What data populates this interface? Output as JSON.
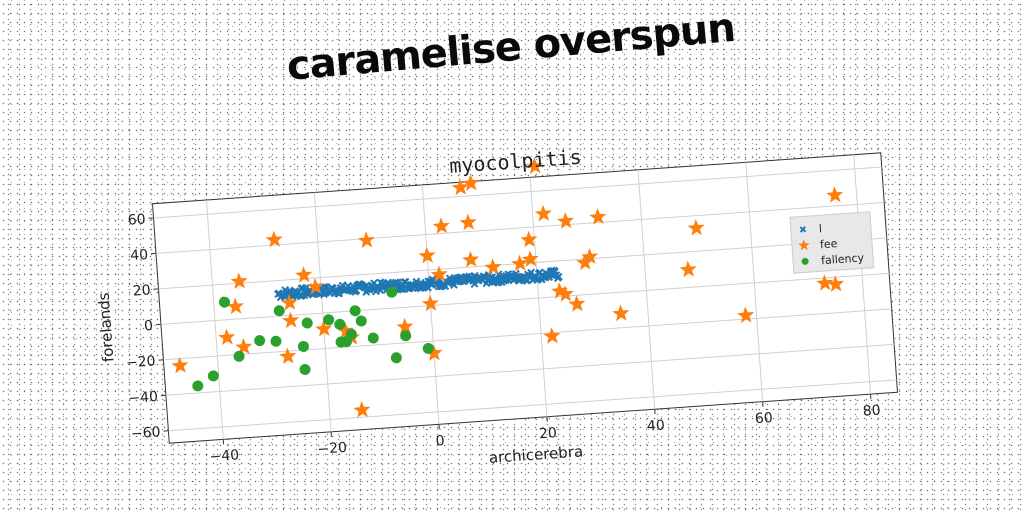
{
  "banner": "caramelise overspun",
  "chart_data": {
    "type": "scatter",
    "title": "myocolpitis",
    "xlabel": "archicerebra",
    "ylabel": "forelands",
    "xlim": [
      -50,
      85
    ],
    "ylim": [
      -67,
      68
    ],
    "xticks": [
      -40,
      -20,
      0,
      20,
      40,
      60,
      80
    ],
    "yticks": [
      -60,
      -40,
      -20,
      0,
      20,
      40,
      60
    ],
    "xtick_labels": [
      "−40",
      "−20",
      "0",
      "20",
      "40",
      "60",
      "80"
    ],
    "ytick_labels": [
      "−60",
      "−40",
      "−20",
      "0",
      "20",
      "40",
      "60"
    ],
    "grid": true,
    "legend_position": "right",
    "series": [
      {
        "name": "l",
        "marker": "x",
        "color": "#1f77b4",
        "band": {
          "x_from": -28,
          "x_to": 24,
          "y_from": 10,
          "y_to": 15
        }
      },
      {
        "name": "fee",
        "marker": "star",
        "color": "#ff7f0e",
        "points": [
          [
            -47,
            -24
          ],
          [
            -38,
            -10
          ],
          [
            -35,
            21
          ],
          [
            -35,
            -16
          ],
          [
            -36,
            7
          ],
          [
            -28,
            43
          ],
          [
            -27,
            -23
          ],
          [
            -26,
            7
          ],
          [
            -26,
            -3
          ],
          [
            -23,
            22
          ],
          [
            -21,
            15
          ],
          [
            -20,
            -9
          ],
          [
            -16,
            -11
          ],
          [
            -15,
            -15
          ],
          [
            -14,
            -56
          ],
          [
            -11,
            39
          ],
          [
            -5,
            -11
          ],
          [
            0,
            28
          ],
          [
            0,
            -27
          ],
          [
            0,
            1
          ],
          [
            2,
            17
          ],
          [
            3,
            44
          ],
          [
            7,
            65
          ],
          [
            8,
            45
          ],
          [
            8,
            24
          ],
          [
            9,
            67
          ],
          [
            12,
            19
          ],
          [
            17,
            20
          ],
          [
            19,
            33
          ],
          [
            19,
            22
          ],
          [
            21,
            74
          ],
          [
            22,
            47
          ],
          [
            22,
            -22
          ],
          [
            24,
            3
          ],
          [
            25,
            1
          ],
          [
            26,
            42
          ],
          [
            27,
            -5
          ],
          [
            29,
            18
          ],
          [
            30,
            21
          ],
          [
            32,
            43
          ],
          [
            35,
            -12
          ],
          [
            48,
            10
          ],
          [
            50,
            33
          ],
          [
            58,
            -18
          ],
          [
            73,
            -3
          ],
          [
            75,
            -4
          ],
          [
            76,
            46
          ]
        ]
      },
      {
        "name": "fallency",
        "marker": "circle",
        "color": "#2ca02c",
        "points": [
          [
            -44,
            -36
          ],
          [
            -41,
            -31
          ],
          [
            -38,
            10
          ],
          [
            -36,
            -21
          ],
          [
            -32,
            -13
          ],
          [
            -29,
            -14
          ],
          [
            -28,
            3
          ],
          [
            -24,
            -18
          ],
          [
            -24,
            -31
          ],
          [
            -23,
            -5
          ],
          [
            -19,
            -4
          ],
          [
            -17,
            -7
          ],
          [
            -17,
            -17
          ],
          [
            -16,
            -17
          ],
          [
            -15,
            -13
          ],
          [
            -14,
            0
          ],
          [
            -13,
            -6
          ],
          [
            -11,
            -16
          ],
          [
            -7,
            9
          ],
          [
            -7,
            -28
          ],
          [
            -5,
            -16
          ],
          [
            -1,
            -24
          ]
        ]
      }
    ]
  }
}
